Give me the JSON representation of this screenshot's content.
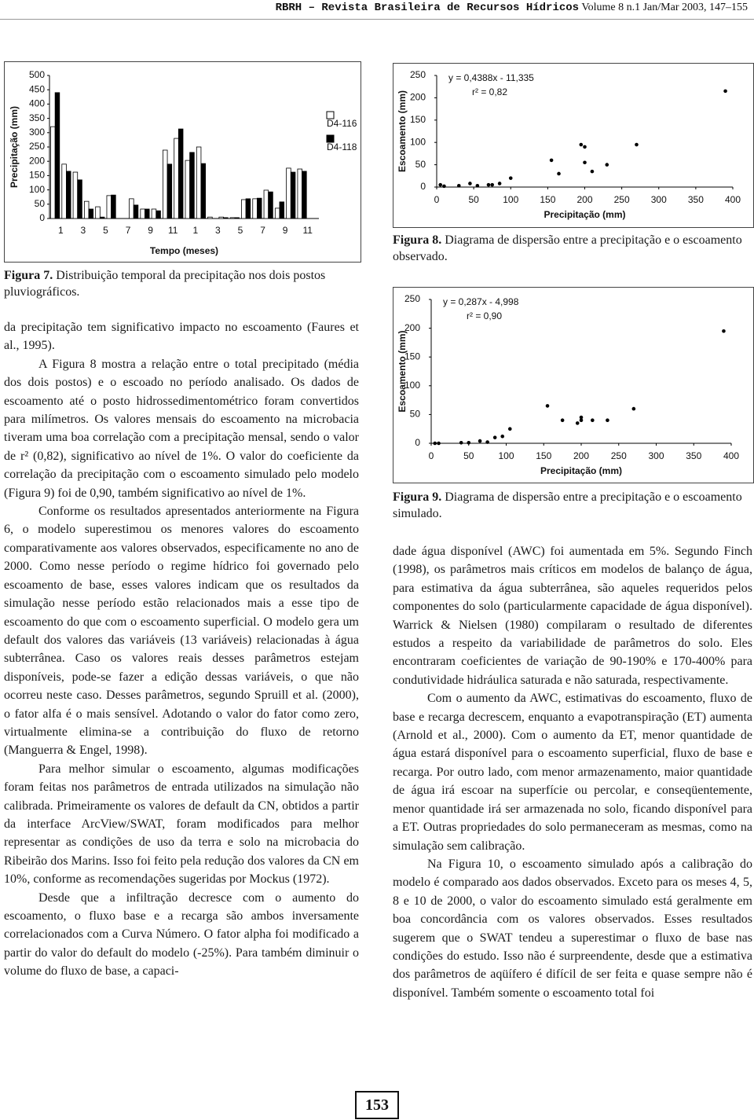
{
  "header": {
    "journal": "RBRH – Revista Brasileira de Recursos Hídricos",
    "issue": "Volume 8 n.1 Jan/Mar 2003, 147–155"
  },
  "chart_data": [
    {
      "type": "bar",
      "y_label": "Precipitação (mm)",
      "x_label": "Tempo (meses)",
      "categories": [
        "1",
        null,
        "3",
        null,
        "5",
        null,
        "7",
        null,
        "9",
        null,
        "11",
        null,
        "1",
        null,
        "3",
        null,
        "5",
        null,
        "7",
        null,
        "9",
        null,
        "11",
        null
      ],
      "series": [
        {
          "name": "D4-116",
          "color": "#ffffff",
          "values": [
            321,
            190,
            162,
            60,
            41,
            80,
            0,
            69,
            33,
            33,
            239,
            280,
            203,
            250,
            5,
            5,
            3,
            66,
            69,
            99,
            36,
            176,
            173,
            0
          ]
        },
        {
          "name": "D4-118",
          "color": "#000000",
          "values": [
            440,
            165,
            135,
            33,
            5,
            82,
            0,
            47,
            33,
            27,
            190,
            313,
            231,
            192,
            0,
            3,
            3,
            69,
            71,
            93,
            58,
            162,
            165,
            0
          ]
        }
      ],
      "ylim": [
        0,
        500
      ],
      "yticks": [
        0,
        50,
        100,
        150,
        200,
        250,
        300,
        350,
        400,
        450,
        500
      ],
      "legend": "right"
    },
    {
      "type": "scatter",
      "y_label": "Escoamento (mm)",
      "x_label": "Precipitação (mm)",
      "annotations": [
        "y = 0,4388x - 11,335",
        "r² = 0,82"
      ],
      "x": [
        5,
        10,
        30,
        45,
        55,
        70,
        75,
        85,
        100,
        155,
        165,
        195,
        200,
        200,
        210,
        230,
        270,
        390
      ],
      "values": [
        5,
        2,
        3,
        8,
        3,
        5,
        5,
        8,
        20,
        60,
        30,
        95,
        90,
        55,
        35,
        50,
        95,
        215
      ],
      "color": "#000000",
      "xlim": [
        0,
        400
      ],
      "xticks": [
        0,
        50,
        100,
        150,
        200,
        250,
        300,
        350,
        400
      ],
      "ylim": [
        0,
        250
      ],
      "yticks": [
        0,
        50,
        100,
        150,
        200,
        250
      ]
    },
    {
      "type": "scatter",
      "y_label": "Escoamento (mm)",
      "x_label": "Precipitação (mm)",
      "annotations": [
        "y = 0,287x - 4,998",
        "r² = 0,90"
      ],
      "x": [
        5,
        10,
        40,
        50,
        65,
        75,
        85,
        95,
        105,
        155,
        175,
        195,
        200,
        200,
        215,
        235,
        270,
        390
      ],
      "values": [
        0,
        0,
        1,
        1,
        4,
        2,
        10,
        12,
        25,
        65,
        40,
        35,
        45,
        40,
        40,
        40,
        60,
        195
      ],
      "color": "#000000",
      "xlim": [
        0,
        400
      ],
      "xticks": [
        0,
        50,
        100,
        150,
        200,
        250,
        300,
        350,
        400
      ],
      "ylim": [
        0,
        250
      ],
      "yticks": [
        0,
        50,
        100,
        150,
        200,
        250
      ]
    }
  ],
  "captions": [
    {
      "label": "Figura 7.",
      "text": "Distribuição temporal da precipitação nos dois postos pluviográficos."
    },
    {
      "label": "Figura 8.",
      "text": "Diagrama de dispersão entre a precipitação e o escoamento observado."
    },
    {
      "label": "Figura 9.",
      "text": "Diagrama de dispersão entre a precipitação e o escoamento simulado."
    }
  ],
  "left_column": [
    "da precipitação tem significativo impacto no escoamento (Faures et al., 1995).",
    "A Figura 8 mostra a relação entre o total precipitado (média dos dois postos) e o escoado no período analisado. Os dados de escoamento até o posto hidrossedimentométrico foram convertidos para milímetros. Os valores mensais do escoamento na microbacia tiveram uma boa correlação com a precipitação mensal, sendo o valor de r² (0,82), significativo ao nível de 1%. O valor do coeficiente da correlação da precipitação com o escoamento simulado pelo modelo (Figura 9) foi de 0,90, também significativo ao nível de 1%.",
    "Conforme os resultados apresentados anteriormente na Figura 6, o modelo superestimou os menores valores do escoamento comparativamente aos valores observados, especificamente no ano de 2000. Como nesse período o regime hídrico foi governado pelo escoamento de base, esses valores indicam que os resultados da simulação nesse período estão relacionados mais a esse tipo de escoamento do que com o escoamento superficial. O modelo gera um default dos valores das variáveis (13 variáveis) relacionadas à água subterrânea. Caso os valores reais desses parâmetros estejam disponíveis, pode-se fazer a edição dessas variáveis, o que não ocorreu neste caso. Desses parâmetros, segundo Spruill et al. (2000), o fator alfa é o mais sensível. Adotando o valor do fator como zero, virtualmente elimina-se a contribuição do fluxo de retorno (Manguerra & Engel, 1998).",
    "Para melhor simular o escoamento, algumas modificações foram feitas nos parâmetros de entrada utilizados na simulação não calibrada. Primeiramente os valores de default da CN, obtidos a partir da interface ArcView/SWAT, foram modificados para melhor representar as condições de uso da terra e solo na microbacia do Ribeirão dos Marins. Isso foi feito pela redução dos valores da CN em 10%, conforme as recomendações sugeridas por Mockus (1972).",
    "Desde que a infiltração decresce com o aumento do escoamento, o fluxo base e a recarga são ambos inversamente correlacionados com a Curva Número. O fator alpha foi modificado a partir do valor do default do modelo (-25%). Para também diminuir o volume do fluxo de base, a capaci-"
  ],
  "right_column": [
    "dade água disponível (AWC) foi aumentada em 5%. Segundo Finch (1998), os parâmetros mais críticos em modelos de balanço de água, para estimativa da água subterrânea, são aqueles requeridos pelos componentes do solo (particularmente capacidade de água disponível). Warrick & Nielsen (1980) compilaram o resultado de diferentes estudos a respeito da variabilidade de parâmetros do solo. Eles encontraram coeficientes de variação de 90-190% e 170-400% para condutividade hidráulica saturada e não saturada, respectivamente.",
    "Com o aumento da AWC, estimativas do escoamento, fluxo de base e recarga decrescem, enquanto a evapotranspiração (ET) aumenta (Arnold et al., 2000). Com o aumento da ET, menor quantidade de água estará disponível para o escoamento superficial, fluxo de base e recarga. Por outro lado, com menor armazenamento, maior quantidade de água irá escoar na superfície ou percolar, e conseqüentemente, menor quantidade irá ser armazenada no solo, ficando disponível para a ET. Outras propriedades do solo permaneceram as mesmas, como na simulação sem calibração.",
    "Na Figura 10, o escoamento simulado após a calibração do modelo é comparado aos dados observados. Exceto para os meses 4, 5, 8 e 10 de 2000, o valor do escoamento simulado está geralmente em boa concordância com os valores observados. Esses resultados sugerem que o SWAT tendeu a superestimar o fluxo de base nas condições do estudo. Isso não é surpreendente, desde que a estimativa dos parâmetros de aqüífero é difícil de ser feita e quase sempre não é disponível. Também somente o escoamento total foi"
  ],
  "page_number": "153"
}
